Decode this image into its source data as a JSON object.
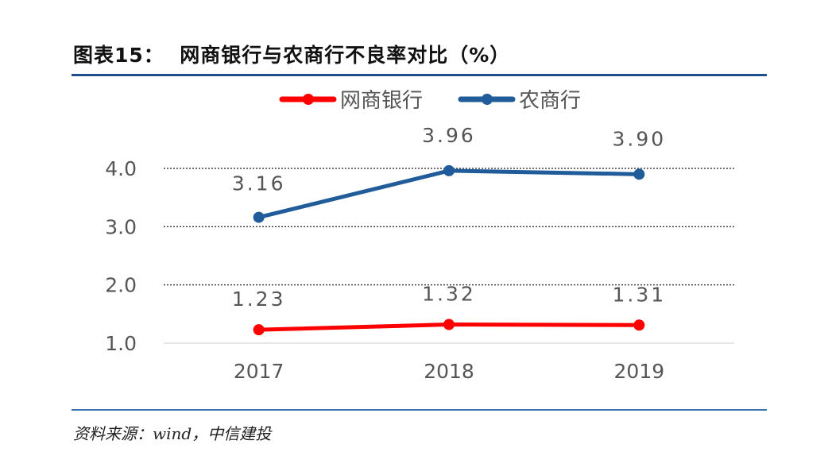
{
  "title": "图表15：  网商银行与农商行不良率对比（%）",
  "source": "资料来源：wind，中信建投",
  "colors": {
    "rule": "#1f4e8c",
    "grid": "#444444"
  },
  "chart_data": {
    "type": "line",
    "categories": [
      "2017",
      "2018",
      "2019"
    ],
    "ylim": [
      1.0,
      4.0
    ],
    "yticks": [
      "1.0",
      "2.0",
      "3.0",
      "4.0"
    ],
    "grid": "dotted horizontal",
    "legend": "top",
    "series": [
      {
        "name": "网商银行",
        "color": "#ff0000",
        "values": [
          1.23,
          1.32,
          1.31
        ],
        "labels": [
          "1.23",
          "1.32",
          "1.31"
        ]
      },
      {
        "name": "农商行",
        "color": "#1f5c99",
        "values": [
          3.16,
          3.96,
          3.9
        ],
        "labels": [
          "3.16",
          "3.96",
          "3.90"
        ]
      }
    ]
  }
}
